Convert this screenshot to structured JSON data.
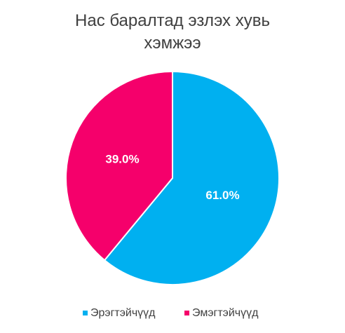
{
  "chart_data": {
    "type": "pie",
    "title": "Нас баралтад эзлэх хувь хэмжээ",
    "categories": [
      "Эрэгтэйчүүд",
      "Эмэгтэйчүүд"
    ],
    "values": [
      61.0,
      39.0
    ],
    "value_labels": [
      "61.0%",
      "39.0%"
    ],
    "colors": [
      "#00b0f0",
      "#f5006b"
    ],
    "legend": "bottom"
  }
}
